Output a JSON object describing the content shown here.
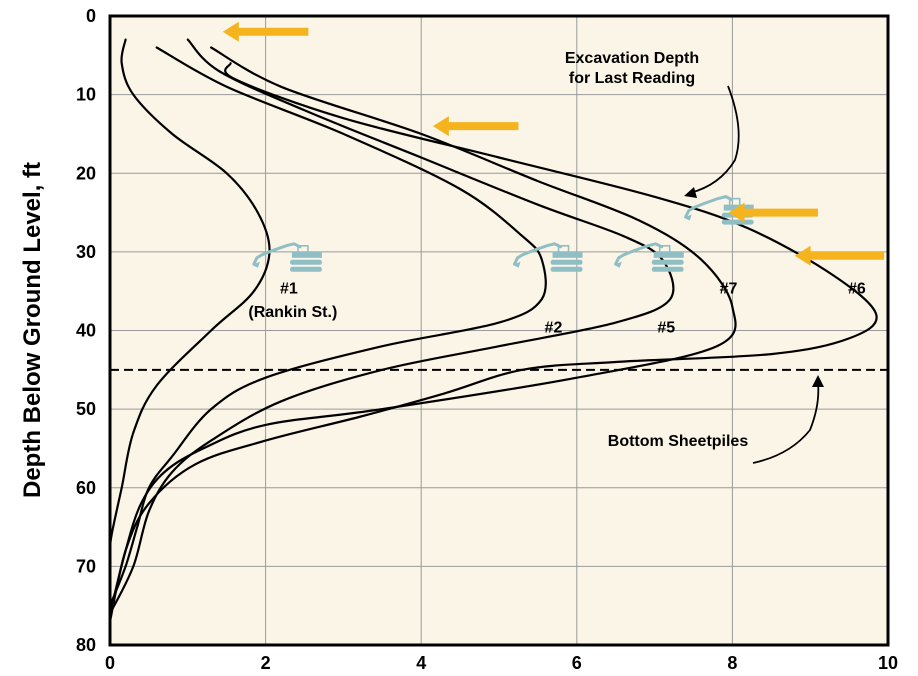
{
  "chart_data": {
    "type": "line",
    "xlabel": "",
    "ylabel": "Depth Below Ground Level, ft",
    "xlim": [
      0,
      10
    ],
    "ylim": [
      80,
      0
    ],
    "x_ticks": [
      "0",
      "2",
      "4",
      "6",
      "8",
      "10"
    ],
    "y_ticks": [
      "0",
      "10",
      "20",
      "30",
      "40",
      "50",
      "60",
      "70",
      "80"
    ],
    "grid": true,
    "background_color": "#fbf5e7",
    "line_color": "#000000",
    "arrow_color": "#f5b41e",
    "excavator_color": "#8fbfc4",
    "series": [
      {
        "name": "#1",
        "points": [
          [
            0.2,
            3
          ],
          [
            0.15,
            6
          ],
          [
            0.3,
            10
          ],
          [
            0.8,
            15
          ],
          [
            1.5,
            20
          ],
          [
            1.9,
            25
          ],
          [
            2.05,
            30
          ],
          [
            1.85,
            35
          ],
          [
            1.3,
            40
          ],
          [
            0.6,
            47
          ],
          [
            0.3,
            53
          ],
          [
            0.15,
            60
          ],
          [
            0.02,
            66
          ],
          [
            0.0,
            68
          ]
        ]
      },
      {
        "name": "#2",
        "points": [
          [
            0.6,
            4
          ],
          [
            1.5,
            9
          ],
          [
            3.0,
            15
          ],
          [
            4.5,
            22
          ],
          [
            5.3,
            28
          ],
          [
            5.55,
            31
          ],
          [
            5.55,
            36
          ],
          [
            5.0,
            39
          ],
          [
            3.5,
            42
          ],
          [
            2.0,
            46
          ],
          [
            1.3,
            50
          ],
          [
            0.8,
            56
          ],
          [
            0.5,
            60
          ],
          [
            0.35,
            65
          ],
          [
            0.2,
            70
          ],
          [
            0.0,
            75
          ]
        ]
      },
      {
        "name": "#5",
        "points": [
          [
            1.0,
            3
          ],
          [
            1.4,
            7
          ],
          [
            2.5,
            12
          ],
          [
            4.0,
            18
          ],
          [
            5.5,
            24
          ],
          [
            6.6,
            28
          ],
          [
            7.1,
            31
          ],
          [
            7.2,
            36
          ],
          [
            6.5,
            39
          ],
          [
            5.0,
            42
          ],
          [
            3.5,
            45
          ],
          [
            2.2,
            49
          ],
          [
            1.3,
            54
          ],
          [
            0.8,
            58
          ],
          [
            0.5,
            63
          ],
          [
            0.3,
            70
          ],
          [
            0.0,
            76
          ]
        ]
      },
      {
        "name": "#7",
        "points": [
          [
            1.3,
            4
          ],
          [
            2.2,
            9
          ],
          [
            4.0,
            15
          ],
          [
            5.5,
            21
          ],
          [
            6.8,
            26
          ],
          [
            7.6,
            31
          ],
          [
            8.0,
            37
          ],
          [
            7.8,
            42
          ],
          [
            6.0,
            46
          ],
          [
            3.5,
            50
          ],
          [
            2.0,
            52
          ],
          [
            1.2,
            55
          ],
          [
            0.7,
            58
          ],
          [
            0.4,
            62
          ],
          [
            0.2,
            68
          ],
          [
            0.0,
            76
          ]
        ]
      },
      {
        "name": "#6",
        "points": [
          [
            1.55,
            6
          ],
          [
            1.6,
            8
          ],
          [
            3.0,
            13
          ],
          [
            5.0,
            18
          ],
          [
            7.0,
            23
          ],
          [
            8.2,
            27
          ],
          [
            9.3,
            33
          ],
          [
            9.85,
            38
          ],
          [
            9.5,
            41
          ],
          [
            8.5,
            43
          ],
          [
            6.5,
            44
          ],
          [
            5.3,
            45
          ],
          [
            4.3,
            48
          ],
          [
            3.2,
            51
          ],
          [
            2.0,
            54
          ],
          [
            1.1,
            57
          ],
          [
            0.5,
            62
          ],
          [
            0.2,
            68
          ],
          [
            0.0,
            77
          ]
        ]
      }
    ],
    "series_labels": [
      {
        "text": "#1",
        "x": 2.3,
        "y": 34.5
      },
      {
        "text": "(Rankin St.)",
        "x": 2.35,
        "y": 37.5
      },
      {
        "text": "#2",
        "x": 5.7,
        "y": 39.5
      },
      {
        "text": "#5",
        "x": 7.15,
        "y": 39.5
      },
      {
        "text": "#7",
        "x": 7.95,
        "y": 34.5
      },
      {
        "text": "#6",
        "x": 9.6,
        "y": 34.5
      }
    ],
    "excavation_arrows": [
      {
        "depth": 2,
        "x_from": 2.55,
        "x_to": 1.45
      },
      {
        "depth": 14,
        "x_from": 5.25,
        "x_to": 4.15
      },
      {
        "depth": 25,
        "x_from": 9.1,
        "x_to": 7.95
      },
      {
        "depth": 30.5,
        "x_from": 9.95,
        "x_to": 8.8
      }
    ],
    "excavators": [
      {
        "x": 1.85,
        "y": 30.5
      },
      {
        "x": 5.2,
        "y": 30.5
      },
      {
        "x": 6.5,
        "y": 30.5
      },
      {
        "x": 7.4,
        "y": 24.5
      }
    ],
    "sheetpile_depth": 45,
    "annotations": {
      "excavation_line1": "Excavation Depth",
      "excavation_line2": "for Last Reading",
      "sheetpiles": "Bottom Sheetpiles"
    }
  }
}
